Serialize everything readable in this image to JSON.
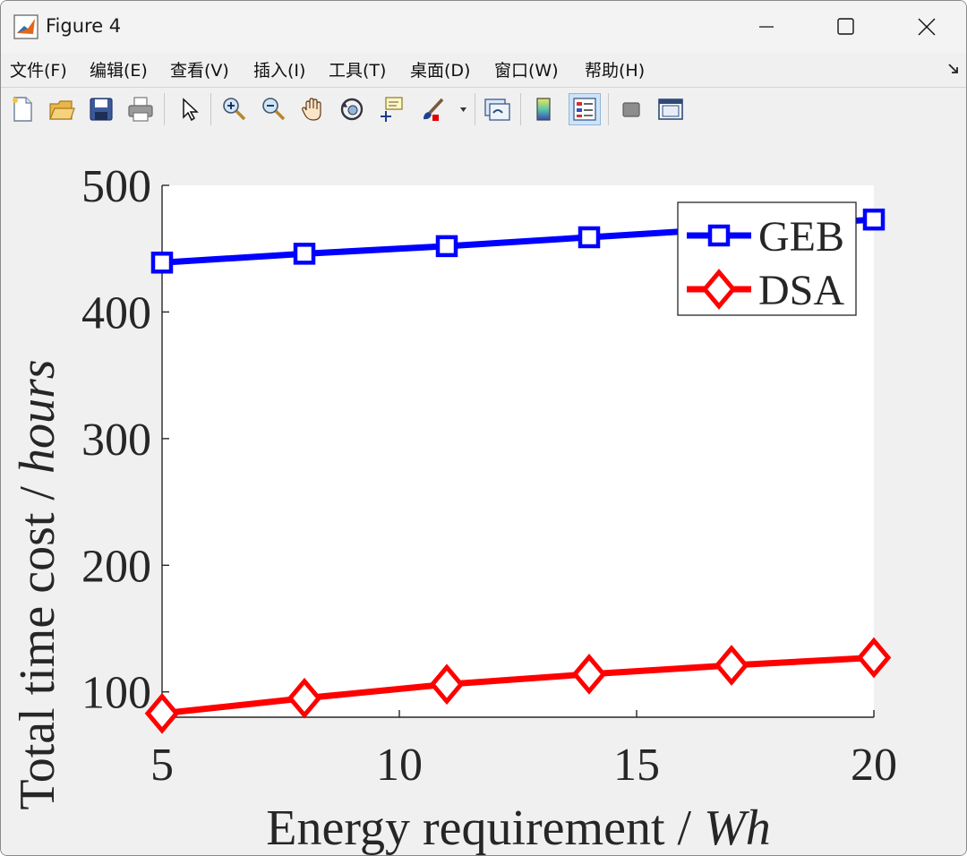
{
  "window": {
    "title": "Figure 4"
  },
  "menu": {
    "items": [
      {
        "id": "file",
        "label": "文件(F)"
      },
      {
        "id": "edit",
        "label": "编辑(E)"
      },
      {
        "id": "view",
        "label": "查看(V)"
      },
      {
        "id": "insert",
        "label": "插入(I)"
      },
      {
        "id": "tools",
        "label": "工具(T)"
      },
      {
        "id": "desktop",
        "label": "桌面(D)"
      },
      {
        "id": "window",
        "label": "窗口(W)"
      },
      {
        "id": "help",
        "label": "帮助(H)"
      }
    ]
  },
  "toolbar": {
    "icons": [
      "new-figure-icon",
      "open-file-icon",
      "save-icon",
      "print-icon",
      "pointer-icon",
      "zoom-in-icon",
      "zoom-out-icon",
      "pan-hand-icon",
      "rotate-3d-icon",
      "data-cursor-icon",
      "brush-icon",
      "brush-dropdown-icon",
      "link-plot-icon",
      "colorbar-icon",
      "legend-icon",
      "hide-plot-tools-icon",
      "show-plot-tools-icon"
    ]
  },
  "colors": {
    "geb": "#0000ff",
    "dsa": "#ff0000"
  },
  "chart_data": {
    "type": "line",
    "xlabel_main": "Energy requirement  / ",
    "xlabel_unit": "Wh",
    "ylabel_main": "Total time cost / ",
    "ylabel_unit": "hours",
    "xlim": [
      5,
      20
    ],
    "ylim": [
      80,
      500
    ],
    "xticks": [
      5,
      10,
      15,
      20
    ],
    "yticks": [
      100,
      200,
      300,
      400,
      500
    ],
    "x": [
      5,
      8,
      11,
      14,
      17,
      20
    ],
    "legend_position": "top-right",
    "series": [
      {
        "name": "GEB",
        "color": "#0000ff",
        "marker": "square",
        "values": [
          439,
          446,
          452,
          459,
          466,
          473
        ]
      },
      {
        "name": "DSA",
        "color": "#ff0000",
        "marker": "diamond",
        "values": [
          83,
          95,
          106,
          114,
          121,
          127
        ]
      }
    ]
  }
}
